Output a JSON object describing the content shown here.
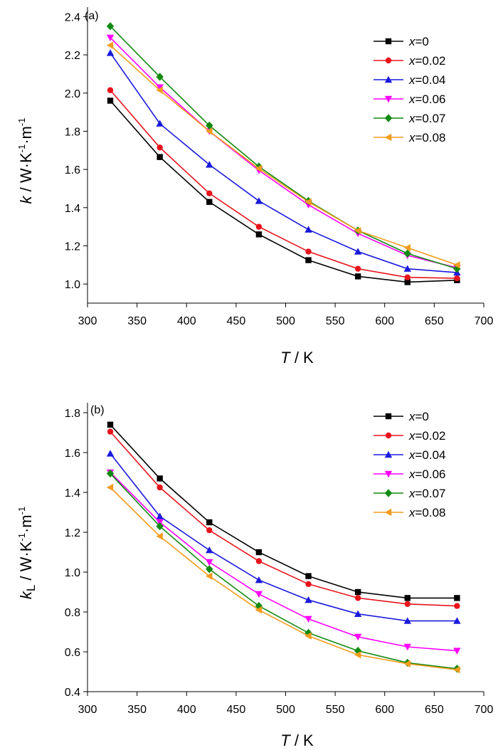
{
  "chart_data": [
    {
      "type": "line",
      "panel_label": "(a)",
      "xlabel": {
        "var": "T",
        "unit": " / K"
      },
      "ylabel": {
        "var": "k",
        "sub": "",
        "unit": " / W·K",
        "sup": "-1",
        "tail": "·m",
        "sup2": "-1"
      },
      "xlim": [
        300,
        700
      ],
      "ylim": [
        0.9,
        2.45
      ],
      "x_ticks": [
        "300",
        "350",
        "400",
        "450",
        "500",
        "550",
        "600",
        "650",
        "700"
      ],
      "y_ticks": [
        "1.0",
        "1.2",
        "1.4",
        "1.6",
        "1.8",
        "2.0",
        "2.2",
        "2.4"
      ],
      "legend_position": "top-right",
      "x": [
        323,
        373,
        423,
        473,
        523,
        573,
        623,
        673
      ],
      "series": [
        {
          "name": "x=0",
          "var": "x",
          "value": "=0",
          "color": "#000000",
          "marker": "square",
          "values": [
            1.96,
            1.665,
            1.43,
            1.26,
            1.125,
            1.04,
            1.01,
            1.02
          ]
        },
        {
          "name": "x=0.02",
          "var": "x",
          "value": "=0.02",
          "color": "#e8141c",
          "marker": "circle",
          "values": [
            2.015,
            1.715,
            1.475,
            1.3,
            1.17,
            1.08,
            1.035,
            1.03
          ]
        },
        {
          "name": "x=0.04",
          "var": "x",
          "value": "=0.04",
          "color": "#1a1adc",
          "marker": "triangle-up",
          "values": [
            2.21,
            1.84,
            1.625,
            1.435,
            1.285,
            1.17,
            1.08,
            1.06
          ]
        },
        {
          "name": "x=0.06",
          "var": "x",
          "value": "=0.06",
          "color": "#ff00ff",
          "marker": "triangle-down",
          "values": [
            2.29,
            2.03,
            1.8,
            1.595,
            1.415,
            1.265,
            1.15,
            1.085
          ]
        },
        {
          "name": "x=0.07",
          "var": "x",
          "value": "=0.07",
          "color": "#118a11",
          "marker": "diamond",
          "values": [
            2.35,
            2.085,
            1.83,
            1.615,
            1.435,
            1.28,
            1.16,
            1.08
          ]
        },
        {
          "name": "x=0.08",
          "var": "x",
          "value": "=0.08",
          "color": "#f39c1e",
          "marker": "triangle-left",
          "values": [
            2.25,
            2.015,
            1.8,
            1.605,
            1.43,
            1.28,
            1.19,
            1.1
          ]
        }
      ]
    },
    {
      "type": "line",
      "panel_label": "(b)",
      "xlabel": {
        "var": "T",
        "unit": " / K"
      },
      "ylabel": {
        "var": "k",
        "sub": "L",
        "unit": " / W·K",
        "sup": "-1",
        "tail": "·m",
        "sup2": "-1"
      },
      "xlim": [
        300,
        700
      ],
      "ylim": [
        0.4,
        1.85
      ],
      "x_ticks": [
        "300",
        "350",
        "400",
        "450",
        "500",
        "550",
        "600",
        "650",
        "700"
      ],
      "y_ticks": [
        "0.4",
        "0.6",
        "0.8",
        "1.0",
        "1.2",
        "1.4",
        "1.6",
        "1.8"
      ],
      "legend_position": "top-right",
      "x": [
        323,
        373,
        423,
        473,
        523,
        573,
        623,
        673
      ],
      "series": [
        {
          "name": "x=0",
          "var": "x",
          "value": "=0",
          "color": "#000000",
          "marker": "square",
          "values": [
            1.74,
            1.47,
            1.25,
            1.1,
            0.98,
            0.9,
            0.87,
            0.87
          ]
        },
        {
          "name": "x=0.02",
          "var": "x",
          "value": "=0.02",
          "color": "#e8141c",
          "marker": "circle",
          "values": [
            1.705,
            1.425,
            1.21,
            1.055,
            0.94,
            0.87,
            0.84,
            0.83
          ]
        },
        {
          "name": "x=0.04",
          "var": "x",
          "value": "=0.04",
          "color": "#1a1adc",
          "marker": "triangle-up",
          "values": [
            1.595,
            1.28,
            1.11,
            0.96,
            0.86,
            0.79,
            0.755,
            0.755
          ]
        },
        {
          "name": "x=0.06",
          "var": "x",
          "value": "=0.06",
          "color": "#ff00ff",
          "marker": "triangle-down",
          "values": [
            1.5,
            1.25,
            1.05,
            0.89,
            0.765,
            0.675,
            0.625,
            0.605
          ]
        },
        {
          "name": "x=0.07",
          "var": "x",
          "value": "=0.07",
          "color": "#118a11",
          "marker": "diamond",
          "values": [
            1.495,
            1.23,
            1.015,
            0.83,
            0.695,
            0.605,
            0.545,
            0.515
          ]
        },
        {
          "name": "x=0.08",
          "var": "x",
          "value": "=0.08",
          "color": "#f39c1e",
          "marker": "triangle-left",
          "values": [
            1.425,
            1.18,
            0.98,
            0.81,
            0.68,
            0.585,
            0.54,
            0.51
          ]
        }
      ]
    }
  ]
}
